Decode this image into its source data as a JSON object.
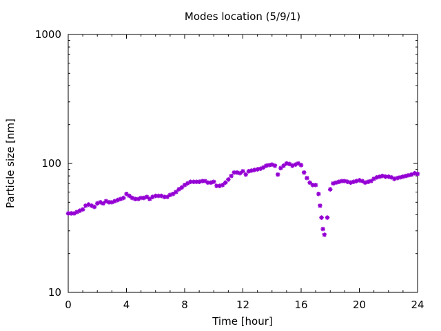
{
  "chart_data": {
    "type": "scatter",
    "title": "Modes location (5/9/1)",
    "xlabel": "Time [hour]",
    "ylabel": "Particle size [nm]",
    "xlim": [
      0,
      24
    ],
    "ylim": [
      10,
      1000
    ],
    "y_scale": "log",
    "x_ticks": [
      0,
      4,
      8,
      12,
      16,
      20,
      24
    ],
    "x_tick_labels": [
      "0",
      "4",
      "8",
      "12",
      "16",
      "20",
      "24"
    ],
    "y_ticks": [
      10,
      100,
      1000
    ],
    "y_tick_labels": [
      "10",
      "100",
      "1000"
    ],
    "grid": false,
    "legend": "none",
    "marker": "asterisk",
    "series_color": "#9400D3",
    "series": [
      {
        "x": [
          0.0,
          0.2,
          0.4,
          0.6,
          0.8,
          1.0,
          1.2,
          1.4,
          1.6,
          1.8,
          2.0,
          2.2,
          2.4,
          2.6,
          2.8,
          3.0,
          3.2,
          3.4,
          3.6,
          3.8,
          4.0,
          4.2,
          4.4,
          4.6,
          4.8,
          5.0,
          5.2,
          5.4,
          5.6,
          5.8,
          6.0,
          6.2,
          6.4,
          6.6,
          6.8,
          7.0,
          7.2,
          7.4,
          7.6,
          7.8,
          8.0,
          8.2,
          8.4,
          8.6,
          8.8,
          9.0,
          9.2,
          9.4,
          9.6,
          9.8,
          10.0,
          10.2,
          10.4,
          10.6,
          10.8,
          11.0,
          11.2,
          11.4,
          11.6,
          11.8,
          12.0,
          12.2,
          12.4,
          12.6,
          12.8,
          13.0,
          13.2,
          13.4,
          13.6,
          13.8,
          14.0,
          14.2,
          14.4,
          14.6,
          14.8,
          15.0,
          15.2,
          15.4,
          15.6,
          15.8,
          16.0,
          16.2,
          16.4,
          16.6,
          16.8,
          17.0,
          17.2,
          17.3,
          17.4,
          17.5,
          17.6,
          17.8,
          18.0,
          18.2,
          18.4,
          18.6,
          18.8,
          19.0,
          19.2,
          19.4,
          19.6,
          19.8,
          20.0,
          20.2,
          20.4,
          20.6,
          20.8,
          21.0,
          21.2,
          21.4,
          21.6,
          21.8,
          22.0,
          22.2,
          22.4,
          22.6,
          22.8,
          23.0,
          23.2,
          23.4,
          23.6,
          23.8,
          24.0
        ],
        "y": [
          41,
          41,
          41,
          42,
          43,
          44,
          47,
          48,
          47,
          46,
          49,
          50,
          49,
          51,
          50,
          50,
          51,
          52,
          53,
          54,
          58,
          56,
          54,
          53,
          53,
          54,
          54,
          55,
          53,
          55,
          56,
          56,
          56,
          55,
          55,
          57,
          58,
          60,
          63,
          65,
          68,
          70,
          72,
          72,
          72,
          72,
          73,
          73,
          71,
          71,
          72,
          67,
          67,
          68,
          71,
          75,
          80,
          85,
          85,
          84,
          87,
          82,
          87,
          88,
          89,
          90,
          91,
          93,
          96,
          97,
          98,
          96,
          82,
          92,
          96,
          100,
          99,
          96,
          98,
          100,
          97,
          85,
          77,
          71,
          68,
          68,
          58,
          47,
          38,
          31,
          28,
          38,
          63,
          70,
          71,
          72,
          73,
          73,
          72,
          71,
          72,
          73,
          74,
          73,
          71,
          72,
          73,
          76,
          78,
          79,
          80,
          79,
          79,
          78,
          76,
          77,
          78,
          79,
          80,
          81,
          82,
          84,
          83
        ]
      }
    ]
  }
}
